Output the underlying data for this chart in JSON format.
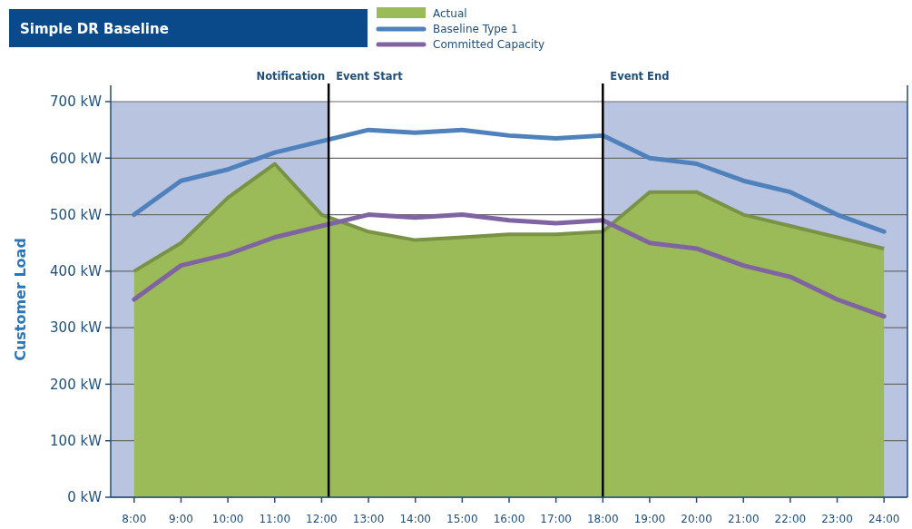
{
  "chart_data": {
    "type": "line",
    "title": "Simple DR Baseline",
    "ylabel": "Customer Load",
    "x": [
      8,
      9,
      10,
      11,
      12,
      13,
      14,
      15,
      16,
      17,
      18,
      19,
      20,
      21,
      22,
      23,
      24
    ],
    "xlim": [
      7.5,
      24.5
    ],
    "xticks": [
      {
        "value": 8,
        "label": "8:00"
      },
      {
        "value": 9,
        "label": "9:00"
      },
      {
        "value": 10,
        "label": "10:00"
      },
      {
        "value": 11,
        "label": "11:00"
      },
      {
        "value": 12,
        "label": "12:00"
      },
      {
        "value": 13,
        "label": "13:00"
      },
      {
        "value": 14,
        "label": "14:00"
      },
      {
        "value": 15,
        "label": "15:00"
      },
      {
        "value": 16,
        "label": "16:00"
      },
      {
        "value": 17,
        "label": "17:00"
      },
      {
        "value": 18,
        "label": "18:00"
      },
      {
        "value": 19,
        "label": "19:00"
      },
      {
        "value": 20,
        "label": "20:00"
      },
      {
        "value": 21,
        "label": "21:00"
      },
      {
        "value": 22,
        "label": "22:00"
      },
      {
        "value": 23,
        "label": "23:00"
      },
      {
        "value": 24,
        "label": "24:00"
      }
    ],
    "ylim": [
      0,
      700
    ],
    "yticks": [
      {
        "value": 0,
        "label": "0 kW"
      },
      {
        "value": 100,
        "label": "100 kW"
      },
      {
        "value": 200,
        "label": "200 kW"
      },
      {
        "value": 300,
        "label": "300 kW"
      },
      {
        "value": 400,
        "label": "400 kW"
      },
      {
        "value": 500,
        "label": "500 kW"
      },
      {
        "value": 600,
        "label": "600 kW"
      },
      {
        "value": 700,
        "label": "700 kW"
      }
    ],
    "series": [
      {
        "name": "Actual",
        "type": "area",
        "color": "#9bbb59",
        "values": [
          400,
          450,
          530,
          590,
          500,
          470,
          455,
          460,
          465,
          465,
          470,
          540,
          540,
          500,
          480,
          460,
          440
        ]
      },
      {
        "name": "Baseline Type 1",
        "color": "#4f81bd",
        "values": [
          500,
          560,
          580,
          610,
          630,
          650,
          645,
          650,
          640,
          635,
          640,
          600,
          590,
          560,
          540,
          500,
          470
        ]
      },
      {
        "name": "Committed Capacity",
        "color": "#8064a2",
        "values": [
          350,
          410,
          430,
          460,
          480,
          500,
          495,
          500,
          490,
          485,
          490,
          450,
          440,
          410,
          390,
          350,
          320
        ]
      }
    ],
    "bands": [
      {
        "axis": "x",
        "from": 7.5,
        "to": 12.15,
        "color": "#b9c5e0"
      },
      {
        "axis": "x",
        "from": 18,
        "to": 24.5,
        "color": "#b9c5e0"
      }
    ],
    "ref_lines": [
      {
        "axis": "x",
        "value": 12.15,
        "label": "Notification",
        "color": "#000000"
      },
      {
        "axis": "x",
        "value": 18,
        "label": "Event End",
        "color": "#000000"
      }
    ],
    "annotations": [
      "Event Start"
    ],
    "grid": "y",
    "legend": "top",
    "marker": "none",
    "line_style": "solid"
  }
}
